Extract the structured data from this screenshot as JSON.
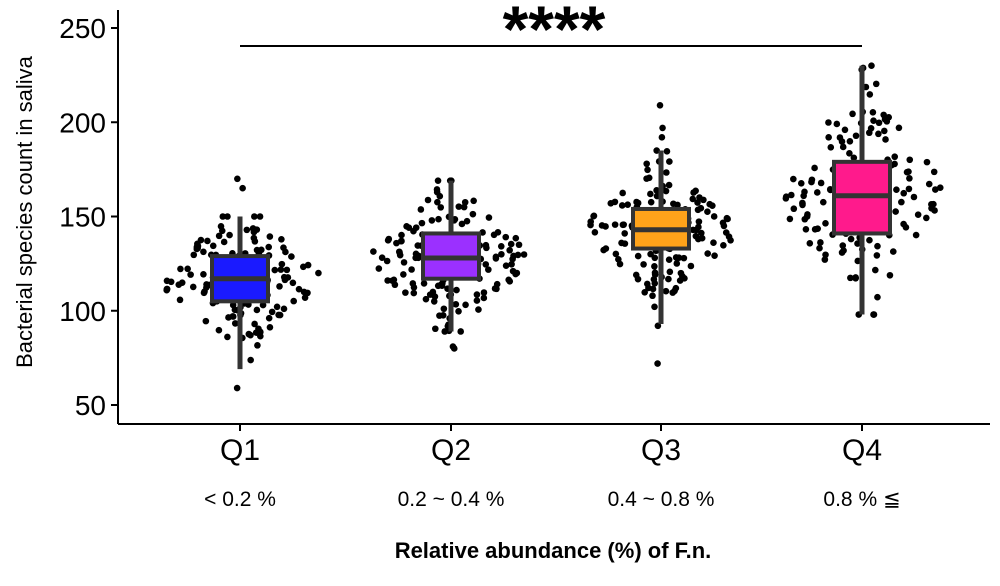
{
  "chart_data": {
    "type": "box",
    "title": "",
    "ylabel": "Bacterial species count in saliva",
    "xlabel": "Relative abundance (%) of  F.n.",
    "ylim": [
      40,
      260
    ],
    "yticks": [
      50,
      100,
      150,
      200,
      250
    ],
    "significance": {
      "label": "****",
      "from": "Q1",
      "to": "Q4"
    },
    "categories": [
      {
        "name": "Q1",
        "range": "< 0.2 %",
        "color": "#1a1aff",
        "min": 69,
        "q1": 105,
        "median": 117,
        "q3": 129,
        "max": 150,
        "outliers": [
          59,
          165,
          170
        ]
      },
      {
        "name": "Q2",
        "range": "0.2 ~ 0.4 %",
        "color": "#9b30ff",
        "min": 89,
        "q1": 117,
        "median": 128,
        "q3": 141,
        "max": 169,
        "outliers": [
          80,
          81
        ]
      },
      {
        "name": "Q3",
        "range": "0.4 ~ 0.8 %",
        "color": "#ffa31a",
        "min": 93,
        "q1": 133,
        "median": 143,
        "q3": 154,
        "max": 185,
        "outliers": [
          72,
          92,
          192,
          197,
          209
        ]
      },
      {
        "name": "Q4",
        "range": "0.8 % ≦",
        "color": "#ff1a8c",
        "min": 98,
        "q1": 141,
        "median": 161,
        "q3": 179,
        "max": 230,
        "outliers": []
      }
    ]
  }
}
